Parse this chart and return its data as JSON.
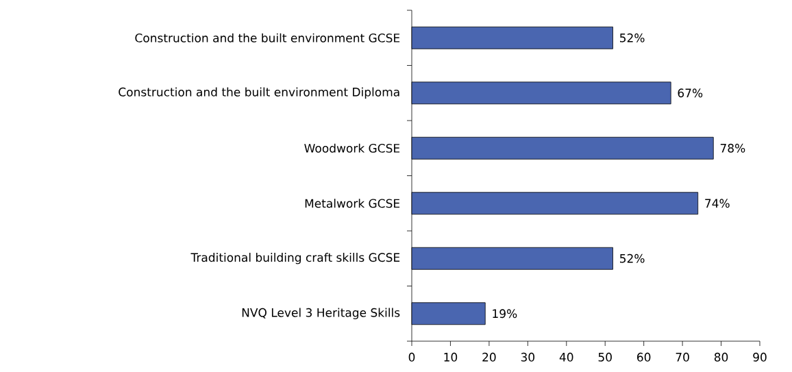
{
  "chart_data": {
    "type": "bar",
    "orientation": "horizontal",
    "categories": [
      "Construction and the built environment GCSE",
      "Construction and the built environment Diploma",
      "Woodwork GCSE",
      "Metalwork GCSE",
      "Traditional building craft skills GCSE",
      "NVQ Level 3 Heritage Skills"
    ],
    "values": [
      52,
      67,
      78,
      74,
      52,
      19
    ],
    "value_labels": [
      "52%",
      "67%",
      "78%",
      "74%",
      "52%",
      "19%"
    ],
    "color": "#4a66b0",
    "xlim": [
      0,
      90
    ],
    "xticks": [
      0,
      10,
      20,
      30,
      40,
      50,
      60,
      70,
      80,
      90
    ]
  }
}
